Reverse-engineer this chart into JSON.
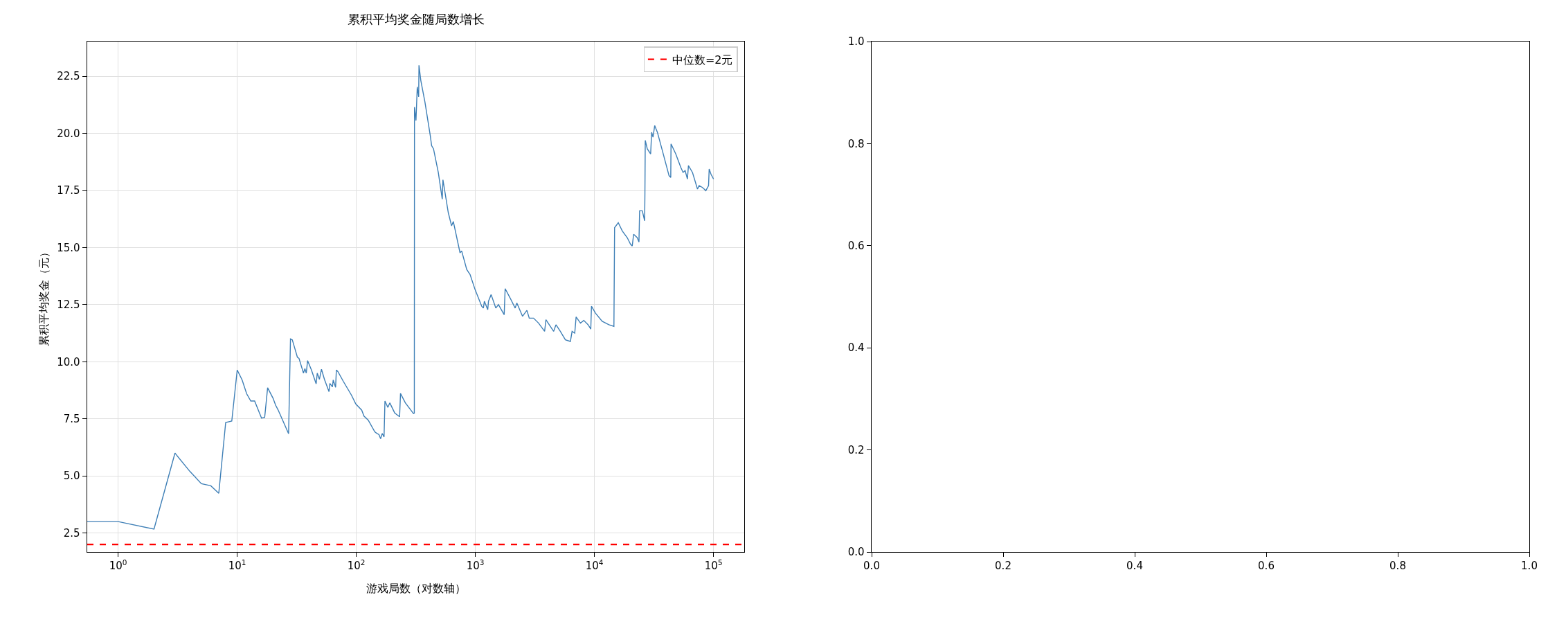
{
  "chart_data": [
    {
      "type": "line",
      "title": "累积平均奖金随局数增长",
      "xlabel": "游戏局数（对数轴）",
      "ylabel": "累积平均奖金（元）",
      "log": "x",
      "grid": true,
      "legend": "top right",
      "line_style": "solid",
      "marker": "none",
      "xlim": [
        0.55,
        181000
      ],
      "ylim": [
        1.67,
        24.02
      ],
      "xticks": [
        {
          "value": 1,
          "label": "10$^{0}$"
        },
        {
          "value": 10,
          "label": "10$^{1}$"
        },
        {
          "value": 100,
          "label": "10$^{2}$"
        },
        {
          "value": 1000,
          "label": "10$^{3}$"
        },
        {
          "value": 10000,
          "label": "10$^{4}$"
        },
        {
          "value": 100000,
          "label": "10$^{5}$"
        }
      ],
      "yticks": [
        2.5,
        {
          "value": 5,
          "label": "5.0"
        },
        7.5,
        {
          "value": 10,
          "label": "10.0"
        },
        12.5,
        {
          "value": 15,
          "label": "15.0"
        },
        17.5,
        {
          "value": 20,
          "label": "20.0"
        },
        22.5
      ],
      "ref_lines": [
        {
          "axis": "y",
          "value": 2,
          "label": "中位数=2元",
          "color": "#ff0000",
          "line_style": "dashed"
        }
      ],
      "series": [
        {
          "color": "#3e7fb6",
          "x": [
            0.55,
            1,
            2,
            3,
            4,
            5,
            6,
            7,
            8,
            9,
            10,
            11,
            12,
            13,
            14,
            16,
            17,
            18,
            20,
            21,
            22,
            27,
            28,
            29,
            32,
            33,
            36,
            37,
            38,
            39,
            42,
            46,
            47,
            49,
            51,
            54,
            59,
            60,
            63,
            64,
            67,
            68,
            70,
            78,
            91,
            99,
            111,
            116,
            126,
            143,
            149,
            155,
            160,
            165,
            171,
            174,
            184,
            191,
            210,
            231,
            235,
            258,
            302,
            307,
            308,
            317,
            325,
            334,
            336,
            348,
            377,
            418,
            429,
            445,
            488,
            527,
            534,
            592,
            631,
            653,
            743,
            767,
            846,
            902,
            994,
            1130,
            1167,
            1190,
            1270,
            1288,
            1356,
            1484,
            1562,
            1745,
            1778,
            1958,
            2158,
            2229,
            2489,
            2708,
            2833,
            3080,
            3395,
            3813,
            3913,
            4255,
            4540,
            4751,
            5166,
            5698,
            6279,
            6487,
            6830,
            7013,
            7627,
            8136,
            8846,
            9314,
            9436,
            10196,
            11609,
            13213,
            14566,
            14757,
            15845,
            17112,
            18857,
            20105,
            20757,
            21326,
            22888,
            23643,
            23939,
            25214,
            26383,
            26530,
            26702,
            27770,
            29629,
            30220,
            31021,
            32046,
            33756,
            37180,
            42289,
            43722,
            43952,
            48162,
            53088,
            55468,
            57690,
            60366,
            61533,
            66537,
            73282,
            75683,
            80748,
            86124,
            90775,
            91912,
            95000,
            100000
          ],
          "values": [
            3.0,
            3.0,
            2.67,
            6.0,
            5.2,
            4.66,
            4.57,
            4.24,
            7.34,
            7.4,
            9.64,
            9.2,
            8.6,
            8.28,
            8.28,
            7.53,
            7.56,
            8.86,
            8.4,
            8.1,
            7.9,
            6.85,
            11.0,
            10.96,
            10.2,
            10.15,
            9.5,
            9.7,
            9.5,
            10.05,
            9.64,
            9.03,
            9.5,
            9.23,
            9.67,
            9.23,
            8.69,
            9.05,
            8.9,
            9.2,
            8.88,
            9.64,
            9.57,
            9.13,
            8.54,
            8.15,
            7.88,
            7.62,
            7.44,
            6.93,
            6.86,
            6.81,
            6.63,
            6.86,
            6.71,
            8.28,
            8.0,
            8.2,
            7.76,
            7.59,
            8.61,
            8.2,
            7.73,
            7.75,
            21.15,
            20.56,
            22.03,
            21.6,
            22.98,
            22.32,
            21.37,
            19.9,
            19.46,
            19.32,
            18.29,
            17.12,
            17.97,
            16.53,
            15.95,
            16.14,
            14.77,
            14.85,
            14.04,
            13.82,
            13.16,
            12.43,
            12.35,
            12.65,
            12.28,
            12.65,
            12.94,
            12.35,
            12.5,
            12.06,
            13.2,
            12.79,
            12.35,
            12.57,
            11.99,
            12.25,
            11.91,
            11.91,
            11.69,
            11.33,
            11.84,
            11.55,
            11.33,
            11.62,
            11.33,
            10.96,
            10.89,
            11.33,
            11.25,
            11.96,
            11.69,
            11.81,
            11.62,
            11.43,
            12.43,
            12.13,
            11.77,
            11.62,
            11.55,
            15.87,
            16.09,
            15.73,
            15.43,
            15.14,
            15.07,
            15.58,
            15.43,
            15.24,
            16.61,
            16.61,
            16.17,
            17.34,
            19.69,
            19.32,
            19.1,
            20.05,
            19.83,
            20.34,
            20.05,
            19.24,
            18.15,
            18.07,
            19.54,
            19.1,
            18.51,
            18.29,
            18.37,
            18.0,
            18.59,
            18.29,
            17.56,
            17.71,
            17.63,
            17.49,
            17.71,
            18.44,
            18.22,
            18.0
          ]
        }
      ]
    },
    {
      "type": "line",
      "grid": false,
      "legend": false,
      "xlim": [
        0,
        1
      ],
      "ylim": [
        0,
        1
      ],
      "xticks": [
        {
          "value": 0,
          "label": "0.0"
        },
        0.2,
        0.4,
        0.6,
        0.8,
        {
          "value": 1,
          "label": "1.0"
        }
      ],
      "yticks": [
        {
          "value": 0,
          "label": "0.0"
        },
        0.2,
        0.4,
        0.6,
        0.8,
        {
          "value": 1,
          "label": "1.0"
        }
      ]
    }
  ]
}
